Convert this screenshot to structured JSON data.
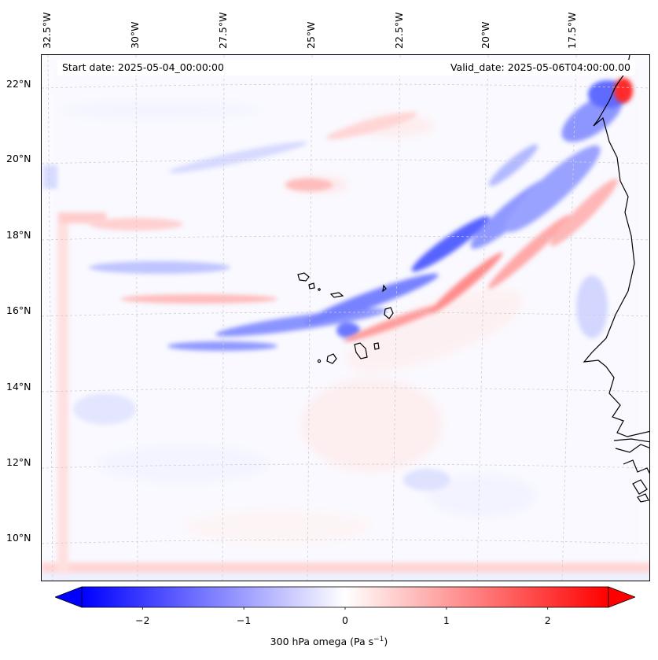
{
  "map": {
    "start_date": "Start date: 2025-05-04_00:00:00",
    "valid_date": "Valid_date: 2025-05-06T04:00:00.00",
    "lon_labels": [
      "32.5°W",
      "30°W",
      "27.5°W",
      "25°W",
      "22.5°W",
      "20°W",
      "17.5°W"
    ],
    "lat_labels": [
      "22°N",
      "20°N",
      "18°N",
      "16°N",
      "14°N",
      "12°N",
      "10°N"
    ],
    "variable": "300 hPa omega",
    "units": "Pa s",
    "units_superscript": "−1",
    "gridlines": true
  },
  "colorbar": {
    "ticks": [
      "−2",
      "−1",
      "0",
      "1",
      "2"
    ],
    "vmin": -2.6,
    "vmax": 2.6,
    "negative_color": "#0000ff",
    "neutral_color": "#ffffff",
    "positive_color": "#ff0000",
    "extend": "both"
  },
  "colors": {
    "ascent": "#3a4dff",
    "descent": "#ff5050",
    "coastline": "#000000",
    "gridline": "#cfcfcf"
  }
}
